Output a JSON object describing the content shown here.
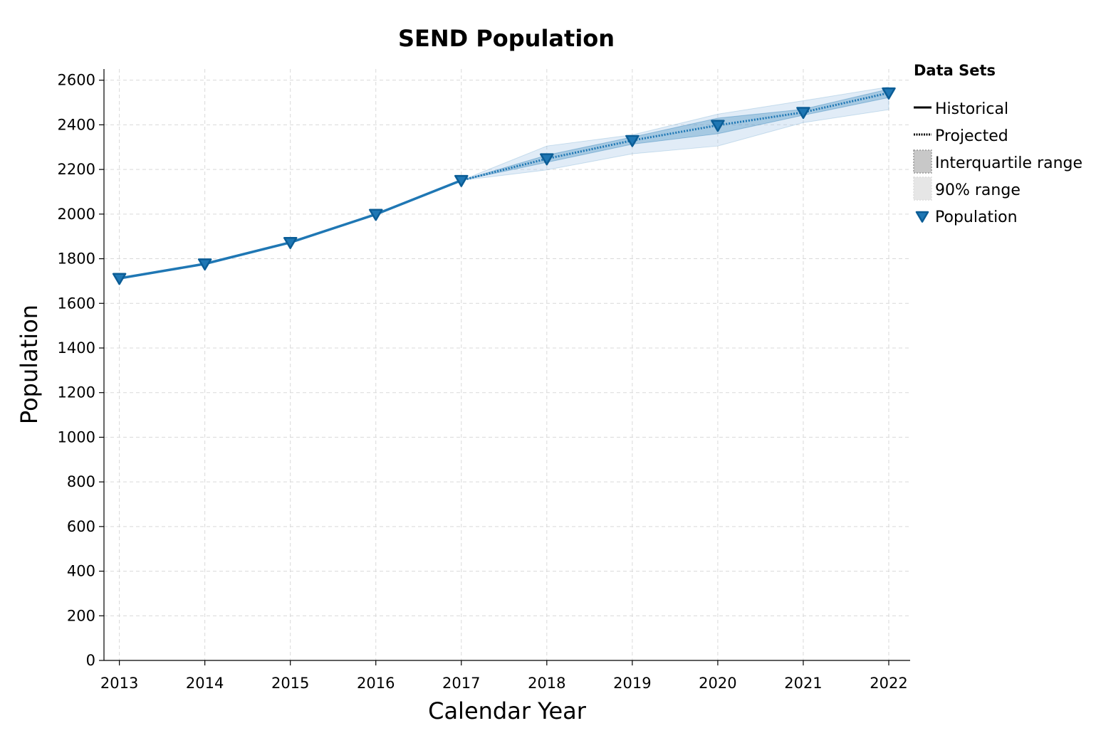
{
  "chart_data": {
    "type": "line",
    "title": "SEND Population",
    "xlabel": "Calendar Year",
    "ylabel": "Population",
    "x": [
      2013,
      2014,
      2015,
      2016,
      2017,
      2018,
      2019,
      2020,
      2021,
      2022
    ],
    "xlim": [
      2012.82,
      2022.25
    ],
    "ylim": [
      0,
      2650
    ],
    "yticks": [
      0,
      200,
      400,
      600,
      800,
      1000,
      1200,
      1400,
      1600,
      1800,
      2000,
      2200,
      2400,
      2600
    ],
    "grid": true,
    "legend_title": "Data Sets",
    "legend_position": "right",
    "series": [
      {
        "name": "Historical",
        "style": "solid",
        "x": [
          2013,
          2014,
          2015,
          2016,
          2017
        ],
        "values": [
          1712,
          1777,
          1873,
          1999,
          2151
        ]
      },
      {
        "name": "Projected",
        "style": "dotted",
        "x": [
          2017,
          2018,
          2019,
          2020,
          2021,
          2022
        ],
        "values": [
          2151,
          2248,
          2330,
          2398,
          2456,
          2543
        ]
      }
    ],
    "interquartile_range": {
      "name": "Interquartile range",
      "x": [
        2017,
        2018,
        2019,
        2020,
        2021,
        2022
      ],
      "lower": [
        2151,
        2232,
        2313,
        2360,
        2443,
        2522
      ],
      "upper": [
        2151,
        2264,
        2345,
        2430,
        2470,
        2560
      ]
    },
    "range_90": {
      "name": "90% range",
      "x": [
        2017,
        2018,
        2019,
        2020,
        2021,
        2022
      ],
      "lower": [
        2151,
        2198,
        2270,
        2305,
        2410,
        2468
      ],
      "upper": [
        2151,
        2305,
        2355,
        2448,
        2508,
        2570
      ]
    },
    "markers": {
      "name": "Population",
      "shape": "triangle-down",
      "x": [
        2013,
        2014,
        2015,
        2016,
        2017,
        2018,
        2019,
        2020,
        2021,
        2022
      ],
      "values": [
        1712,
        1777,
        1873,
        1999,
        2151,
        2248,
        2330,
        2398,
        2456,
        2543
      ]
    },
    "colors": {
      "line": "#1f77b4",
      "marker_fill": "#1f77b4",
      "marker_edge": "#0b5d96",
      "iqr_fill": "#1f77b4",
      "range90_fill": "#a9c8e8",
      "grid": "#d9d9d9",
      "legend_iqr": "#c8c8c8",
      "legend_90": "#e6e6e6"
    },
    "legend": [
      {
        "label": "Historical",
        "kind": "solid"
      },
      {
        "label": "Projected",
        "kind": "dotted"
      },
      {
        "label": "Interquartile range",
        "kind": "iqr"
      },
      {
        "label": "90% range",
        "kind": "range90"
      },
      {
        "label": "Population",
        "kind": "marker"
      }
    ]
  }
}
